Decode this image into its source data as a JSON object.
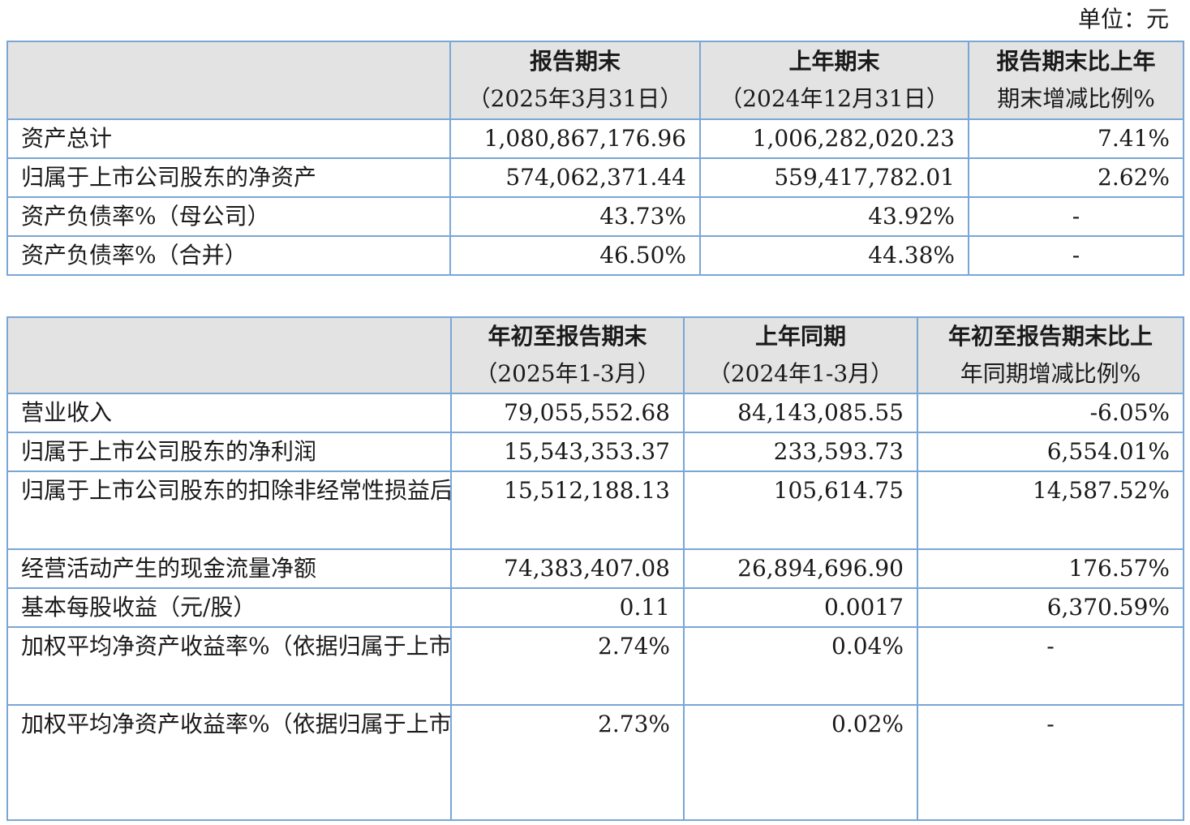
{
  "unit_label": "单位：元",
  "table1": {
    "headers": [
      {
        "main": "",
        "sub": ""
      },
      {
        "main": "报告期末",
        "sub": "（2025年3月31日）"
      },
      {
        "main": "上年期末",
        "sub": "（2024年12月31日）"
      },
      {
        "main": "报告期末比上年",
        "sub": "期末增减比例%"
      }
    ],
    "rows": [
      [
        "资产总计",
        "1,080,867,176.96",
        "1,006,282,020.23",
        "7.41%"
      ],
      [
        "归属于上市公司股东的净资产",
        "574,062,371.44",
        "559,417,782.01",
        "2.62%"
      ],
      [
        "资产负债率%（母公司）",
        "43.73%",
        "43.92%",
        "-"
      ],
      [
        "资产负债率%（合并）",
        "46.50%",
        "44.38%",
        "-"
      ]
    ]
  },
  "table2": {
    "headers": [
      {
        "main": "",
        "sub": ""
      },
      {
        "main": "年初至报告期末",
        "sub": "（2025年1-3月）"
      },
      {
        "main": "上年同期",
        "sub": "（2024年1-3月）"
      },
      {
        "main": "年初至报告期末比上",
        "sub": "年同期增减比例%"
      }
    ],
    "rows": [
      [
        "营业收入",
        "79,055,552.68",
        "84,143,085.55",
        "-6.05%"
      ],
      [
        "归属于上市公司股东的净利润",
        "15,543,353.37",
        "233,593.73",
        "6,554.01%"
      ],
      [
        "归属于上市公司股东的扣除非经常性损益后的净利润",
        "15,512,188.13",
        "105,614.75",
        "14,587.52%"
      ],
      [
        "经营活动产生的现金流量净额",
        "74,383,407.08",
        "26,894,696.90",
        "176.57%"
      ],
      [
        "基本每股收益（元/股）",
        "0.11",
        "0.0017",
        "6,370.59%"
      ],
      [
        "加权平均净资产收益率%（依据归属于上市公司股东的净利润计算）",
        "2.74%",
        "0.04%",
        "-"
      ],
      [
        "加权平均净资产收益率%（依据归属于上市公司股东的扣除非经常性损益后的净利润计算）",
        "2.73%",
        "0.02%",
        "-"
      ]
    ]
  }
}
